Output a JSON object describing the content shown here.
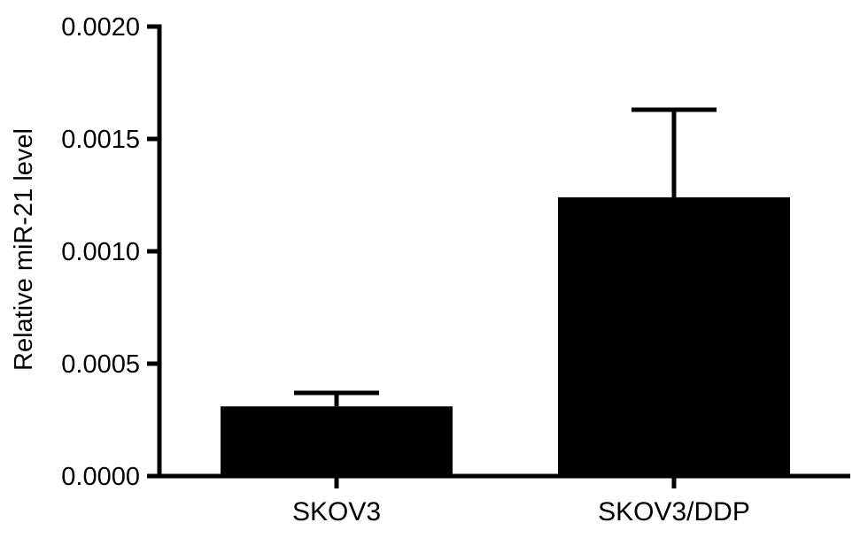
{
  "chart_data": {
    "type": "bar",
    "title": "",
    "xlabel": "",
    "ylabel": "Relative miR-21 level",
    "categories": [
      "SKOV3",
      "SKOV3/DDP"
    ],
    "series": [
      {
        "values": [
          0.00031,
          0.00124
        ],
        "error_upper": [
          6e-05,
          0.00039
        ]
      }
    ],
    "ylim": [
      0,
      0.002
    ],
    "yticks": [
      0,
      0.0005,
      0.001,
      0.0015,
      0.002
    ],
    "ytick_labels": [
      "0.0000",
      "0.0005",
      "0.0010",
      "0.0015",
      "0.0020"
    ],
    "grid": false,
    "legend": "none",
    "colors": {
      "bar": "#000000",
      "axis": "#000000"
    }
  }
}
